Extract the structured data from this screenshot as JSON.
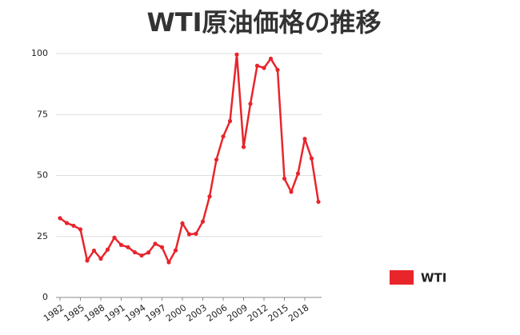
{
  "chart_data": {
    "type": "line",
    "title": "WTI原油価格の推移",
    "x": [
      1982,
      1983,
      1984,
      1985,
      1986,
      1987,
      1988,
      1989,
      1990,
      1991,
      1992,
      1993,
      1994,
      1995,
      1996,
      1997,
      1998,
      1999,
      2000,
      2001,
      2002,
      2003,
      2004,
      2005,
      2006,
      2007,
      2008,
      2009,
      2010,
      2011,
      2012,
      2013,
      2014,
      2015,
      2016,
      2017,
      2018,
      2019,
      2020
    ],
    "series": [
      {
        "name": "WTI",
        "color": "#e8252b",
        "values": [
          32.5,
          30.5,
          29.4,
          27.9,
          15.1,
          19.2,
          15.9,
          19.6,
          24.5,
          21.5,
          20.6,
          18.5,
          17.2,
          18.4,
          22.0,
          20.6,
          14.4,
          19.3,
          30.4,
          25.9,
          26.1,
          31.1,
          41.4,
          56.5,
          66.0,
          72.3,
          99.6,
          61.7,
          79.4,
          95.0,
          94.1,
          97.9,
          93.3,
          48.7,
          43.3,
          50.8,
          65.0,
          57.0,
          39.2
        ]
      }
    ],
    "xlim": [
      1982,
      2020
    ],
    "xticks": [
      1982,
      1985,
      1988,
      1991,
      1994,
      1997,
      2000,
      2003,
      2006,
      2009,
      2012,
      2015,
      2018
    ],
    "ylim": [
      0,
      100
    ],
    "yticks": [
      0,
      25,
      50,
      75,
      100
    ],
    "grid": true,
    "legend": "right"
  }
}
